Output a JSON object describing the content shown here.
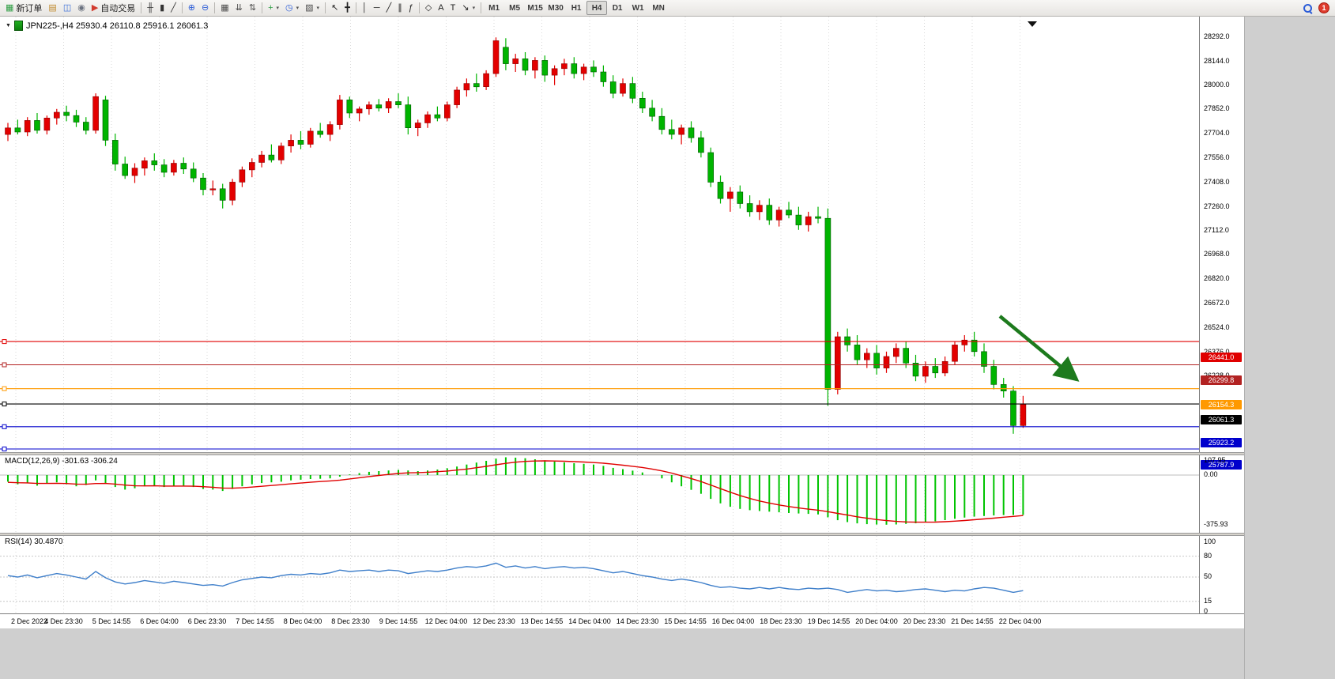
{
  "toolbar": {
    "groups": [
      [
        {
          "name": "new-order-button",
          "glyph": "▦",
          "color": "#2f9e44",
          "label": "新订单"
        },
        {
          "name": "chart-window-button",
          "glyph": "▤",
          "color": "#c08a2d"
        },
        {
          "name": "profiles-button",
          "glyph": "◫",
          "color": "#3a6fd8"
        },
        {
          "name": "data-window-button",
          "glyph": "◉",
          "color": "#6b7280"
        },
        {
          "name": "auto-trading-button",
          "glyph": "▶",
          "color": "#d23b2f",
          "label": "自动交易"
        }
      ],
      [
        {
          "name": "bar-chart-button",
          "glyph": "╫",
          "color": "#333333"
        },
        {
          "name": "candlestick-chart-button",
          "glyph": "▮",
          "color": "#333333"
        },
        {
          "name": "line-chart-button",
          "glyph": "╱",
          "color": "#333333"
        }
      ],
      [
        {
          "name": "zoom-in-button",
          "glyph": "⊕",
          "color": "#2a5bd7"
        },
        {
          "name": "zoom-out-button",
          "glyph": "⊖",
          "color": "#2a5bd7"
        }
      ],
      [
        {
          "name": "tile-windows-button",
          "glyph": "▦",
          "color": "#4a4a4a"
        },
        {
          "name": "arrange-windows-button",
          "glyph": "⇊",
          "color": "#4a4a4a"
        },
        {
          "name": "track-scroll-button",
          "glyph": "⇅",
          "color": "#4a4a4a"
        }
      ],
      [
        {
          "name": "indicators-button",
          "glyph": "+",
          "color": "#2f9e44",
          "caret": true
        },
        {
          "name": "periods-button",
          "glyph": "◷",
          "color": "#2a5bd7",
          "caret": true
        },
        {
          "name": "templates-button",
          "glyph": "▧",
          "color": "#4a4a4a",
          "caret": true
        }
      ],
      [
        {
          "name": "cursor-button",
          "glyph": "↖",
          "color": "#222222"
        },
        {
          "name": "crosshair-button",
          "glyph": "╋",
          "color": "#222222"
        }
      ],
      [
        {
          "name": "vertical-line-button",
          "glyph": "│",
          "color": "#222222"
        },
        {
          "name": "horizontal-line-button",
          "glyph": "─",
          "color": "#222222"
        },
        {
          "name": "trendline-button",
          "glyph": "╱",
          "color": "#222222"
        },
        {
          "name": "channel-button",
          "glyph": "∥",
          "color": "#222222"
        },
        {
          "name": "fibonacci-button",
          "glyph": "ƒ",
          "color": "#222222"
        }
      ],
      [
        {
          "name": "shapes-button",
          "glyph": "◇",
          "color": "#222222"
        },
        {
          "name": "text-button",
          "glyph": "A",
          "color": "#222222"
        },
        {
          "name": "label-button",
          "glyph": "T",
          "color": "#222222"
        },
        {
          "name": "arrows-button",
          "glyph": "↘",
          "color": "#222222",
          "caret": true
        }
      ]
    ],
    "timeframes": [
      "M1",
      "M5",
      "M15",
      "M30",
      "H1",
      "H4",
      "D1",
      "W1",
      "MN"
    ],
    "active_timeframe": "H4",
    "badge": "1"
  },
  "chart_data": {
    "type": "candlestick",
    "symbol_header": "JPN225-,H4  25930.4 26110.8 25916.1 26061.3",
    "symbol": "JPN225-",
    "timeframe": "H4",
    "ohlc_quote": {
      "open": 25930.4,
      "high": 26110.8,
      "low": 25916.1,
      "close": 26061.3
    },
    "bull_color": "#e30000",
    "bear_color": "#00b400",
    "arrow_color": "#1d7a1d",
    "ylim": [
      25759,
      28402
    ],
    "price_axis_ticks": [
      "28292.0",
      "28144.0",
      "28000.0",
      "27852.0",
      "27704.0",
      "27556.0",
      "27408.0",
      "27260.0",
      "27112.0",
      "26968.0",
      "26820.0",
      "26672.0",
      "26524.0",
      "26376.0",
      "26228.0"
    ],
    "hlines": [
      {
        "price": 26441.0,
        "label": "26441.0",
        "color": "#e00000"
      },
      {
        "price": 26299.8,
        "label": "26299.8",
        "color": "#b22222"
      },
      {
        "price": 26154.3,
        "label": "26154.3",
        "color": "#ff9900"
      },
      {
        "price": 26061.3,
        "label": "26061.3",
        "color": "#000000"
      },
      {
        "price": 25923.2,
        "label": "25923.2",
        "color": "#0000cc"
      },
      {
        "price": 25787.9,
        "label": "25787.9",
        "color": "#0000cc"
      }
    ],
    "time_labels": [
      "2 Dec 2022",
      "4 Dec 23:30",
      "5 Dec 14:55",
      "6 Dec 04:00",
      "6 Dec 23:30",
      "7 Dec 14:55",
      "8 Dec 04:00",
      "8 Dec 23:30",
      "9 Dec 14:55",
      "12 Dec 04:00",
      "12 Dec 23:30",
      "13 Dec 14:55",
      "14 Dec 04:00",
      "14 Dec 23:30",
      "15 Dec 14:55",
      "16 Dec 04:00",
      "18 Dec 23:30",
      "19 Dec 14:55",
      "20 Dec 04:00",
      "20 Dec 23:30",
      "21 Dec 14:55",
      "22 Dec 04:00"
    ],
    "ohlc": [
      [
        27700,
        27770,
        27660,
        27740
      ],
      [
        27740,
        27790,
        27700,
        27715
      ],
      [
        27715,
        27805,
        27690,
        27785
      ],
      [
        27785,
        27830,
        27705,
        27725
      ],
      [
        27725,
        27815,
        27700,
        27800
      ],
      [
        27800,
        27855,
        27760,
        27835
      ],
      [
        27835,
        27875,
        27780,
        27815
      ],
      [
        27815,
        27850,
        27745,
        27775
      ],
      [
        27775,
        27805,
        27700,
        27725
      ],
      [
        27725,
        27950,
        27705,
        27930
      ],
      [
        27910,
        27935,
        27630,
        27665
      ],
      [
        27665,
        27705,
        27480,
        27520
      ],
      [
        27520,
        27565,
        27430,
        27450
      ],
      [
        27450,
        27525,
        27405,
        27495
      ],
      [
        27495,
        27560,
        27450,
        27540
      ],
      [
        27540,
        27585,
        27480,
        27515
      ],
      [
        27515,
        27550,
        27440,
        27470
      ],
      [
        27470,
        27545,
        27450,
        27525
      ],
      [
        27525,
        27560,
        27460,
        27490
      ],
      [
        27490,
        27530,
        27410,
        27435
      ],
      [
        27435,
        27465,
        27330,
        27365
      ],
      [
        27365,
        27420,
        27330,
        27370
      ],
      [
        27370,
        27400,
        27250,
        27300
      ],
      [
        27300,
        27430,
        27270,
        27410
      ],
      [
        27410,
        27505,
        27380,
        27485
      ],
      [
        27485,
        27555,
        27440,
        27530
      ],
      [
        27530,
        27600,
        27500,
        27575
      ],
      [
        27575,
        27640,
        27530,
        27545
      ],
      [
        27545,
        27650,
        27520,
        27630
      ],
      [
        27630,
        27700,
        27590,
        27665
      ],
      [
        27665,
        27720,
        27610,
        27640
      ],
      [
        27640,
        27740,
        27620,
        27720
      ],
      [
        27720,
        27770,
        27680,
        27700
      ],
      [
        27700,
        27780,
        27660,
        27760
      ],
      [
        27760,
        27940,
        27730,
        27910
      ],
      [
        27910,
        27930,
        27800,
        27830
      ],
      [
        27830,
        27870,
        27780,
        27855
      ],
      [
        27855,
        27900,
        27820,
        27880
      ],
      [
        27880,
        27915,
        27840,
        27860
      ],
      [
        27860,
        27920,
        27830,
        27900
      ],
      [
        27900,
        27950,
        27860,
        27880
      ],
      [
        27880,
        27930,
        27700,
        27740
      ],
      [
        27740,
        27790,
        27690,
        27770
      ],
      [
        27770,
        27840,
        27740,
        27820
      ],
      [
        27820,
        27870,
        27780,
        27800
      ],
      [
        27800,
        27900,
        27780,
        27880
      ],
      [
        27880,
        27990,
        27860,
        27970
      ],
      [
        27970,
        28040,
        27930,
        28010
      ],
      [
        28010,
        28070,
        27960,
        27990
      ],
      [
        27990,
        28090,
        27970,
        28070
      ],
      [
        28070,
        28290,
        28050,
        28270
      ],
      [
        28230,
        28285,
        28090,
        28130
      ],
      [
        28130,
        28190,
        28080,
        28160
      ],
      [
        28160,
        28200,
        28060,
        28090
      ],
      [
        28090,
        28170,
        28040,
        28150
      ],
      [
        28150,
        28180,
        28020,
        28060
      ],
      [
        28060,
        28120,
        28000,
        28100
      ],
      [
        28100,
        28160,
        28060,
        28130
      ],
      [
        28130,
        28170,
        28040,
        28070
      ],
      [
        28070,
        28130,
        28030,
        28110
      ],
      [
        28110,
        28150,
        28050,
        28080
      ],
      [
        28080,
        28120,
        27990,
        28020
      ],
      [
        28020,
        28060,
        27920,
        27950
      ],
      [
        27950,
        28040,
        27930,
        28010
      ],
      [
        28010,
        28050,
        27890,
        27920
      ],
      [
        27920,
        27960,
        27830,
        27860
      ],
      [
        27860,
        27910,
        27780,
        27810
      ],
      [
        27810,
        27860,
        27700,
        27730
      ],
      [
        27730,
        27790,
        27670,
        27700
      ],
      [
        27700,
        27760,
        27640,
        27740
      ],
      [
        27740,
        27780,
        27650,
        27680
      ],
      [
        27680,
        27720,
        27560,
        27590
      ],
      [
        27590,
        27620,
        27380,
        27410
      ],
      [
        27410,
        27450,
        27280,
        27310
      ],
      [
        27310,
        27380,
        27230,
        27350
      ],
      [
        27350,
        27390,
        27250,
        27280
      ],
      [
        27280,
        27330,
        27200,
        27230
      ],
      [
        27230,
        27300,
        27180,
        27270
      ],
      [
        27270,
        27310,
        27150,
        27180
      ],
      [
        27180,
        27260,
        27140,
        27240
      ],
      [
        27240,
        27290,
        27190,
        27210
      ],
      [
        27210,
        27260,
        27120,
        27150
      ],
      [
        27150,
        27230,
        27110,
        27200
      ],
      [
        27200,
        27260,
        27160,
        27190
      ],
      [
        27190,
        27250,
        26050,
        26150
      ],
      [
        26150,
        26500,
        26120,
        26470
      ],
      [
        26470,
        26520,
        26380,
        26420
      ],
      [
        26420,
        26480,
        26300,
        26330
      ],
      [
        26330,
        26400,
        26280,
        26370
      ],
      [
        26370,
        26420,
        26240,
        26280
      ],
      [
        26280,
        26380,
        26250,
        26350
      ],
      [
        26350,
        26430,
        26310,
        26400
      ],
      [
        26400,
        26440,
        26280,
        26310
      ],
      [
        26310,
        26360,
        26200,
        26230
      ],
      [
        26230,
        26320,
        26190,
        26290
      ],
      [
        26290,
        26340,
        26220,
        26250
      ],
      [
        26250,
        26350,
        26230,
        26320
      ],
      [
        26320,
        26440,
        26300,
        26420
      ],
      [
        26420,
        26480,
        26380,
        26450
      ],
      [
        26450,
        26500,
        26350,
        26380
      ],
      [
        26380,
        26430,
        26250,
        26290
      ],
      [
        26290,
        26330,
        26150,
        26180
      ],
      [
        26180,
        26220,
        26100,
        26140
      ],
      [
        26140,
        26170,
        25880,
        25930
      ],
      [
        25930,
        26110.8,
        25916.1,
        26061.3
      ]
    ],
    "macd": {
      "label": "MACD(12,26,9) -301.63 -306.24",
      "ylim": [
        -437,
        132
      ],
      "axis_ticks": [
        {
          "v": 107.95,
          "t": "107.95"
        },
        {
          "v": 0,
          "t": "0.00"
        },
        {
          "v": -375.93,
          "t": "-375.93"
        }
      ],
      "histogram": [
        -50,
        -70,
        -60,
        -80,
        -65,
        -55,
        -70,
        -85,
        -75,
        -40,
        -60,
        -90,
        -110,
        -100,
        -85,
        -80,
        -90,
        -85,
        -80,
        -90,
        -105,
        -110,
        -120,
        -105,
        -85,
        -70,
        -60,
        -55,
        -50,
        -40,
        -35,
        -30,
        -28,
        -25,
        -12,
        5,
        15,
        25,
        30,
        35,
        40,
        35,
        30,
        35,
        42,
        52,
        65,
        80,
        95,
        108,
        125,
        135,
        132,
        128,
        120,
        112,
        103,
        96,
        90,
        85,
        80,
        70,
        55,
        45,
        34,
        20,
        0,
        -25,
        -55,
        -85,
        -112,
        -142,
        -180,
        -214,
        -240,
        -256,
        -266,
        -272,
        -277,
        -282,
        -287,
        -291,
        -294,
        -298,
        -320,
        -342,
        -356,
        -366,
        -372,
        -375,
        -376,
        -374,
        -370,
        -365,
        -358,
        -350,
        -341,
        -331,
        -322,
        -315,
        -310,
        -306,
        -303,
        -302,
        -301.63
      ],
      "signal": [
        -55,
        -58,
        -59,
        -63,
        -63,
        -62,
        -64,
        -68,
        -69,
        -64,
        -63,
        -68,
        -76,
        -81,
        -82,
        -81,
        -83,
        -83,
        -83,
        -84,
        -88,
        -92,
        -98,
        -99,
        -96,
        -91,
        -85,
        -79,
        -73,
        -66,
        -60,
        -54,
        -49,
        -44,
        -38,
        -29,
        -20,
        -11,
        -3,
        5,
        12,
        17,
        19,
        22,
        26,
        31,
        38,
        46,
        56,
        66,
        78,
        89,
        98,
        104,
        107,
        108,
        107,
        105,
        102,
        99,
        95,
        90,
        83,
        75,
        67,
        58,
        46,
        32,
        15,
        -5,
        -26,
        -49,
        -75,
        -103,
        -130,
        -155,
        -177,
        -196,
        -212,
        -226,
        -238,
        -249,
        -258,
        -266,
        -277,
        -290,
        -303,
        -316,
        -327,
        -337,
        -345,
        -351,
        -355,
        -357,
        -357,
        -356,
        -353,
        -349,
        -344,
        -338,
        -332,
        -326,
        -319,
        -313,
        -306.24
      ]
    },
    "rsi": {
      "label": "RSI(14) 30.4870",
      "ylim": [
        0,
        100
      ],
      "levels": [
        80,
        50,
        15
      ],
      "axis_ticks": [
        {
          "v": 100,
          "t": "100"
        },
        {
          "v": 80,
          "t": "80"
        },
        {
          "v": 50,
          "t": "50"
        },
        {
          "v": 15,
          "t": "15"
        },
        {
          "v": 0,
          "t": "0"
        }
      ],
      "values": [
        52,
        50,
        53,
        49,
        52,
        55,
        53,
        50,
        47,
        58,
        49,
        43,
        40,
        42,
        45,
        43,
        41,
        44,
        42,
        40,
        38,
        39,
        37,
        42,
        46,
        48,
        50,
        49,
        52,
        54,
        53,
        55,
        54,
        56,
        60,
        58,
        59,
        60,
        58,
        60,
        59,
        55,
        57,
        59,
        58,
        60,
        63,
        65,
        64,
        66,
        70,
        64,
        66,
        63,
        65,
        62,
        64,
        65,
        63,
        64,
        62,
        59,
        56,
        58,
        55,
        52,
        50,
        47,
        45,
        47,
        45,
        42,
        38,
        35,
        36,
        34,
        33,
        35,
        33,
        35,
        33,
        32,
        34,
        33,
        34,
        32,
        28,
        30,
        32,
        30,
        31,
        29,
        30,
        32,
        33,
        31,
        29,
        31,
        30,
        33,
        35,
        34,
        31,
        28,
        30.49
      ]
    }
  }
}
